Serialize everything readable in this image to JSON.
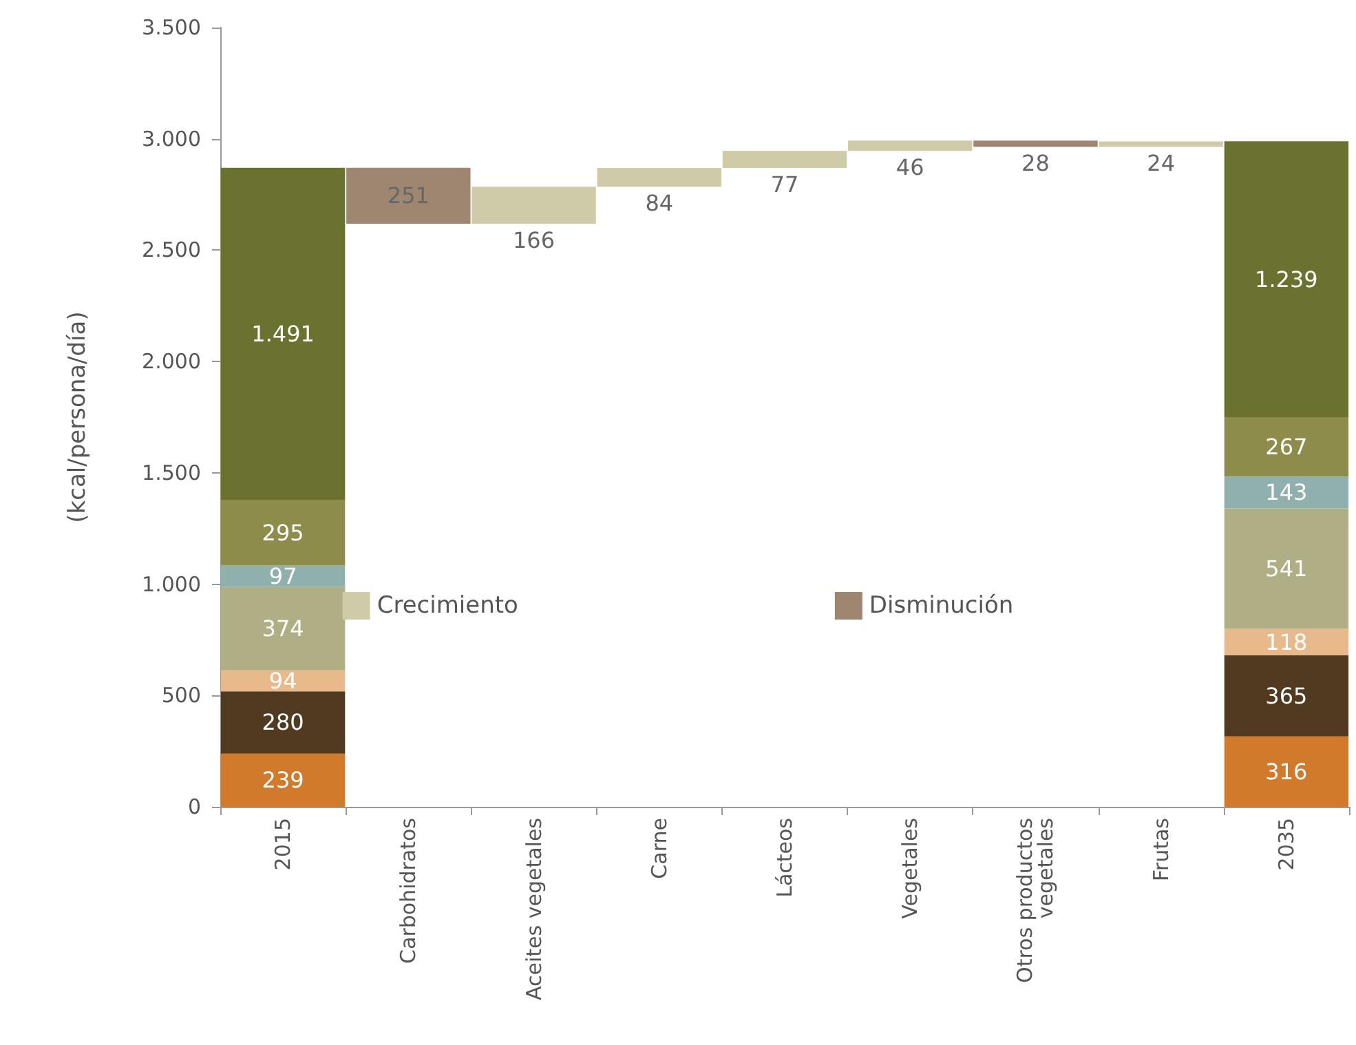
{
  "chart_data": {
    "type": "bar",
    "stacked": true,
    "ylabel": "(kcal/persona/día)",
    "categories": [
      "2015",
      "Carbohidratos",
      "Aceites vegetales",
      "Carne",
      "Lácteos",
      "Vegetales",
      "Otros productos vegetales",
      "Frutas",
      "2035"
    ],
    "series": [
      {
        "color": "#d27a2c",
        "values": [
          239,
          null,
          null,
          null,
          null,
          null,
          null,
          null,
          316
        ],
        "value_labels": [
          "239",
          null,
          null,
          null,
          null,
          null,
          null,
          null,
          "316"
        ]
      },
      {
        "color": "#523a20",
        "values": [
          280,
          null,
          null,
          null,
          null,
          null,
          null,
          null,
          365
        ],
        "value_labels": [
          "280",
          null,
          null,
          null,
          null,
          null,
          null,
          null,
          "365"
        ]
      },
      {
        "color": "#e8b98a",
        "values": [
          94,
          null,
          null,
          null,
          null,
          null,
          null,
          null,
          118
        ],
        "value_labels": [
          "94",
          null,
          null,
          null,
          null,
          null,
          null,
          null,
          "118"
        ]
      },
      {
        "color": "#b0ae85",
        "values": [
          374,
          null,
          null,
          null,
          null,
          null,
          null,
          null,
          541
        ],
        "value_labels": [
          "374",
          null,
          null,
          null,
          null,
          null,
          null,
          null,
          "541"
        ]
      },
      {
        "color": "#8fb0ad",
        "values": [
          97,
          null,
          null,
          null,
          null,
          null,
          null,
          null,
          143
        ],
        "value_labels": [
          "97",
          null,
          null,
          null,
          null,
          null,
          null,
          null,
          "143"
        ]
      },
      {
        "color": "#8e8c4a",
        "values": [
          295,
          null,
          null,
          null,
          null,
          null,
          null,
          null,
          267
        ],
        "value_labels": [
          "295",
          null,
          null,
          null,
          null,
          null,
          null,
          null,
          "267"
        ]
      },
      {
        "color": "#6b722f",
        "values": [
          1491,
          null,
          null,
          null,
          null,
          null,
          null,
          null,
          1239
        ],
        "value_labels": [
          "1.491",
          null,
          null,
          null,
          null,
          null,
          null,
          null,
          "1.239"
        ]
      },
      {
        "name": "Crecimiento",
        "color": "#cfcaa7",
        "values": [
          null,
          null,
          166,
          84,
          77,
          46,
          null,
          24,
          null
        ],
        "base": [
          null,
          null,
          2619,
          2785,
          2869,
          2946,
          null,
          2964,
          null
        ],
        "value_labels": [
          null,
          null,
          "166",
          "84",
          "77",
          "46",
          null,
          "24",
          null
        ]
      },
      {
        "name": "Disminución",
        "color": "#9e8670",
        "values": [
          null,
          251,
          null,
          null,
          null,
          null,
          28,
          null,
          null
        ],
        "base": [
          null,
          2619,
          null,
          null,
          null,
          null,
          2964,
          null,
          null
        ],
        "value_labels": [
          null,
          "251",
          null,
          null,
          null,
          null,
          "28",
          null,
          null
        ]
      }
    ],
    "ylim": [
      0,
      3500
    ],
    "yticks": [
      0,
      500,
      {
        "value": 1000,
        "label": "1.000"
      },
      {
        "value": 1500,
        "label": "1.500"
      },
      {
        "value": 2000,
        "label": "2.000"
      },
      {
        "value": 2500,
        "label": "2.500"
      },
      {
        "value": 3000,
        "label": "3.000"
      },
      {
        "value": 3500,
        "label": "3.500"
      }
    ],
    "grid": false,
    "legend": "center"
  }
}
